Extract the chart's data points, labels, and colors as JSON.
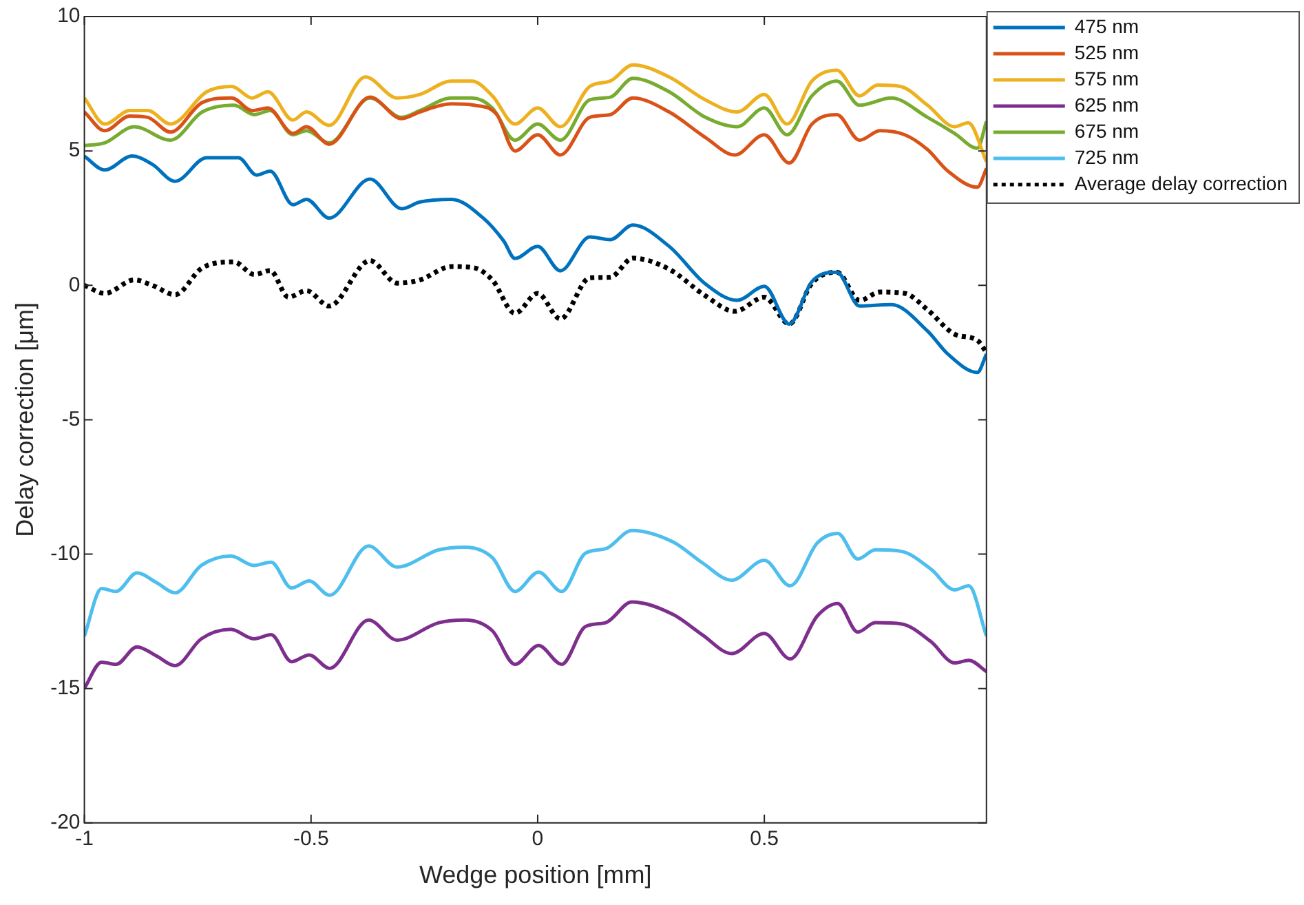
{
  "chart_data": {
    "type": "line",
    "xlabel": "Wedge position [mm]",
    "ylabel": "Delay correction [μm]",
    "xlim": [
      -1,
      0.99
    ],
    "xticks": [
      -1,
      -0.5,
      0,
      0.5
    ],
    "ylim": [
      -20,
      10
    ],
    "yticks": [
      -20,
      -15,
      -10,
      -5,
      0,
      5,
      10
    ],
    "grid": false,
    "legend": "right",
    "marker": "none",
    "series": [
      {
        "name": "475 nm",
        "color": "#0072bd",
        "x": [
          -1,
          -0.955,
          -0.895,
          -0.85,
          -0.8,
          -0.73,
          -0.66,
          -0.62,
          -0.59,
          -0.54,
          -0.51,
          -0.46,
          -0.37,
          -0.3,
          -0.26,
          -0.19,
          -0.12,
          -0.075,
          -0.05,
          0,
          0.05,
          0.115,
          0.16,
          0.21,
          0.29,
          0.37,
          0.44,
          0.5,
          0.555,
          0.605,
          0.66,
          0.71,
          0.78,
          0.86,
          0.905,
          0.97,
          0.99
        ],
        "values": [
          4.8,
          4.29,
          4.81,
          4.5,
          3.87,
          4.75,
          4.75,
          4.1,
          4.25,
          3.0,
          3.2,
          2.5,
          3.95,
          2.85,
          3.1,
          3.2,
          2.5,
          1.65,
          1.0,
          1.45,
          0.54,
          1.8,
          1.7,
          2.24,
          1.45,
          0.05,
          -0.56,
          -0.04,
          -1.44,
          0.14,
          0.49,
          -0.77,
          -0.72,
          -1.7,
          -2.56,
          -3.24,
          -2.56
        ]
      },
      {
        "name": "525 nm",
        "color": "#d95319",
        "x": [
          -1,
          -0.955,
          -0.9,
          -0.86,
          -0.81,
          -0.74,
          -0.675,
          -0.63,
          -0.595,
          -0.54,
          -0.51,
          -0.46,
          -0.37,
          -0.3,
          -0.26,
          -0.19,
          -0.14,
          -0.09,
          -0.05,
          0,
          0.05,
          0.115,
          0.16,
          0.21,
          0.29,
          0.37,
          0.435,
          0.5,
          0.555,
          0.605,
          0.66,
          0.71,
          0.755,
          0.81,
          0.86,
          0.905,
          0.97,
          0.99
        ],
        "values": [
          6.45,
          5.75,
          6.3,
          6.25,
          5.7,
          6.8,
          6.97,
          6.5,
          6.6,
          5.65,
          5.9,
          5.25,
          7.0,
          6.2,
          6.45,
          6.75,
          6.7,
          6.35,
          5.0,
          5.6,
          4.85,
          6.25,
          6.35,
          6.97,
          6.45,
          5.5,
          4.85,
          5.6,
          4.55,
          6.0,
          6.35,
          5.4,
          5.75,
          5.6,
          5.05,
          4.25,
          3.65,
          4.35
        ]
      },
      {
        "name": "575 nm",
        "color": "#edb120",
        "x": [
          -1,
          -0.955,
          -0.9,
          -0.86,
          -0.81,
          -0.73,
          -0.675,
          -0.63,
          -0.595,
          -0.54,
          -0.51,
          -0.46,
          -0.38,
          -0.31,
          -0.26,
          -0.19,
          -0.145,
          -0.1,
          -0.05,
          0,
          0.05,
          0.115,
          0.16,
          0.21,
          0.29,
          0.37,
          0.44,
          0.5,
          0.55,
          0.605,
          0.66,
          0.71,
          0.75,
          0.8,
          0.86,
          0.92,
          0.95,
          0.99
        ],
        "values": [
          6.97,
          6.0,
          6.5,
          6.5,
          6.0,
          7.2,
          7.4,
          6.97,
          7.2,
          6.15,
          6.45,
          5.95,
          7.75,
          6.97,
          7.1,
          7.6,
          7.6,
          7.05,
          6.0,
          6.6,
          5.9,
          7.4,
          7.6,
          8.2,
          7.75,
          6.9,
          6.45,
          7.1,
          6.0,
          7.6,
          8.0,
          7.05,
          7.45,
          7.4,
          6.7,
          5.9,
          6.05,
          4.6
        ]
      },
      {
        "name": "625 nm",
        "color": "#7e2f8e",
        "x": [
          -1,
          -0.962,
          -0.93,
          -0.884,
          -0.84,
          -0.8,
          -0.742,
          -0.677,
          -0.626,
          -0.588,
          -0.543,
          -0.504,
          -0.459,
          -0.373,
          -0.31,
          -0.218,
          -0.16,
          -0.1,
          -0.05,
          0.002,
          0.053,
          0.105,
          0.15,
          0.208,
          0.299,
          0.363,
          0.428,
          0.5,
          0.557,
          0.617,
          0.662,
          0.706,
          0.745,
          0.803,
          0.867,
          0.92,
          0.951,
          0.99
        ],
        "values": [
          -14.99,
          -14.02,
          -14.1,
          -13.45,
          -13.8,
          -14.15,
          -13.15,
          -12.8,
          -13.15,
          -13.0,
          -14.0,
          -13.75,
          -14.25,
          -12.45,
          -13.2,
          -12.55,
          -12.45,
          -12.85,
          -14.1,
          -13.4,
          -14.1,
          -12.7,
          -12.55,
          -11.78,
          -12.25,
          -13.0,
          -13.7,
          -12.95,
          -13.9,
          -12.3,
          -11.84,
          -12.9,
          -12.55,
          -12.6,
          -13.25,
          -14.05,
          -13.95,
          -14.37
        ]
      },
      {
        "name": "675 nm",
        "color": "#77ac30",
        "x": [
          -1,
          -0.955,
          -0.89,
          -0.81,
          -0.74,
          -0.67,
          -0.625,
          -0.59,
          -0.54,
          -0.51,
          -0.46,
          -0.37,
          -0.3,
          -0.26,
          -0.19,
          -0.145,
          -0.1,
          -0.05,
          0,
          0.05,
          0.115,
          0.16,
          0.21,
          0.29,
          0.37,
          0.44,
          0.5,
          0.55,
          0.605,
          0.66,
          0.71,
          0.78,
          0.86,
          0.92,
          0.97,
          0.99
        ],
        "values": [
          5.2,
          5.3,
          5.9,
          5.4,
          6.45,
          6.7,
          6.35,
          6.5,
          5.6,
          5.75,
          5.3,
          6.97,
          6.25,
          6.5,
          6.97,
          6.97,
          6.6,
          5.4,
          6.0,
          5.4,
          6.9,
          7.0,
          7.7,
          7.2,
          6.25,
          5.9,
          6.6,
          5.6,
          7.05,
          7.6,
          6.7,
          6.97,
          6.25,
          5.65,
          5.1,
          6.1
        ]
      },
      {
        "name": "725 nm",
        "color": "#4dbeee",
        "x": [
          -1,
          -0.962,
          -0.93,
          -0.884,
          -0.84,
          -0.8,
          -0.742,
          -0.677,
          -0.626,
          -0.588,
          -0.543,
          -0.504,
          -0.459,
          -0.373,
          -0.31,
          -0.218,
          -0.16,
          -0.1,
          -0.05,
          0.002,
          0.053,
          0.105,
          0.15,
          0.208,
          0.299,
          0.363,
          0.428,
          0.5,
          0.557,
          0.617,
          0.662,
          0.706,
          0.745,
          0.803,
          0.867,
          0.92,
          0.951,
          0.99
        ],
        "values": [
          -13.05,
          -11.28,
          -11.39,
          -10.7,
          -11.07,
          -11.44,
          -10.42,
          -10.07,
          -10.42,
          -10.3,
          -11.26,
          -11.0,
          -11.53,
          -9.7,
          -10.48,
          -9.84,
          -9.74,
          -10.13,
          -11.39,
          -10.67,
          -11.39,
          -9.97,
          -9.8,
          -9.12,
          -9.55,
          -10.32,
          -10.97,
          -10.23,
          -11.18,
          -9.58,
          -9.23,
          -10.18,
          -9.84,
          -9.9,
          -10.55,
          -11.33,
          -11.18,
          -13.05
        ]
      },
      {
        "name": "Average delay correction",
        "color": "#000000",
        "line_style": "dotted",
        "x": [
          -1,
          -0.955,
          -0.89,
          -0.85,
          -0.8,
          -0.74,
          -0.67,
          -0.625,
          -0.59,
          -0.55,
          -0.51,
          -0.46,
          -0.37,
          -0.31,
          -0.26,
          -0.19,
          -0.14,
          -0.1,
          -0.05,
          0,
          0.05,
          0.115,
          0.16,
          0.21,
          0.29,
          0.37,
          0.435,
          0.5,
          0.555,
          0.605,
          0.66,
          0.71,
          0.755,
          0.81,
          0.86,
          0.92,
          0.97,
          0.99
        ],
        "values": [
          0.0,
          -0.3,
          0.2,
          0.0,
          -0.35,
          0.65,
          0.87,
          0.4,
          0.55,
          -0.44,
          -0.2,
          -0.77,
          0.92,
          0.08,
          0.2,
          0.7,
          0.65,
          0.2,
          -1.04,
          -0.3,
          -1.25,
          0.28,
          0.3,
          1.01,
          0.6,
          -0.39,
          -0.97,
          -0.44,
          -1.44,
          0.08,
          0.49,
          -0.56,
          -0.25,
          -0.3,
          -0.91,
          -1.82,
          -2.05,
          -2.5
        ]
      }
    ]
  }
}
